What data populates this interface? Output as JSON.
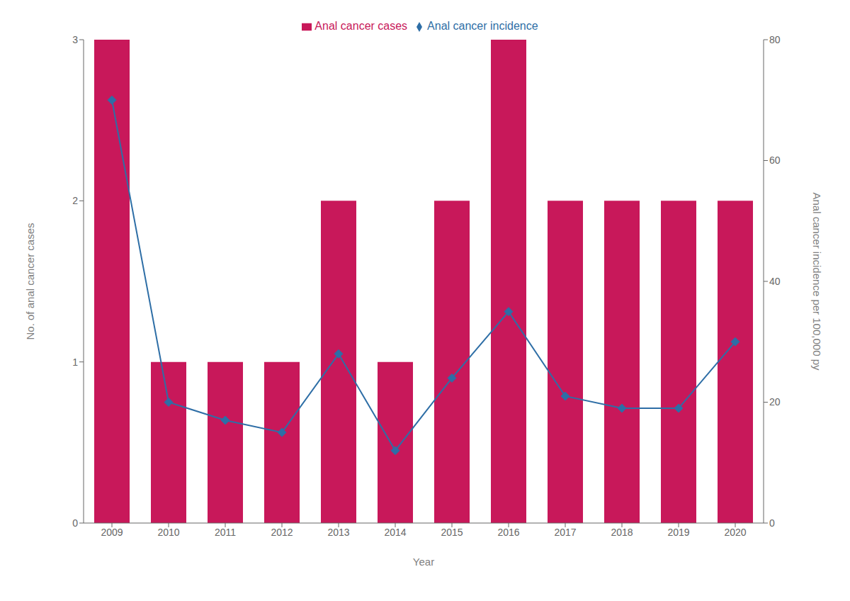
{
  "chart_data": {
    "type": "bar",
    "xlabel": "Year",
    "ylabel": "No. of anal cancer cases",
    "y2label": "Anal cancer incidence per 100,000 py",
    "categories": [
      "2009",
      "2010",
      "2011",
      "2012",
      "2013",
      "2014",
      "2015",
      "2016",
      "2017",
      "2018",
      "2019",
      "2020"
    ],
    "series": [
      {
        "name": "Anal cancer cases",
        "type": "bar",
        "color": "#C8185A",
        "values": [
          3,
          1,
          1,
          1,
          2,
          1,
          2,
          3,
          2,
          2,
          2,
          2
        ]
      },
      {
        "name": "Anal cancer incidence",
        "type": "line",
        "axis": "y2",
        "color": "#2E6EA6",
        "marker": "diamond",
        "values": [
          70,
          20,
          17,
          15,
          28,
          12,
          24,
          35,
          21,
          19,
          19,
          30
        ]
      }
    ],
    "ylim": [
      0,
      3
    ],
    "yticks": [
      0,
      1,
      2,
      3
    ],
    "y2lim": [
      0,
      80
    ],
    "y2ticks": [
      0,
      20,
      40,
      60,
      80
    ],
    "grid": false,
    "legend": "top"
  }
}
